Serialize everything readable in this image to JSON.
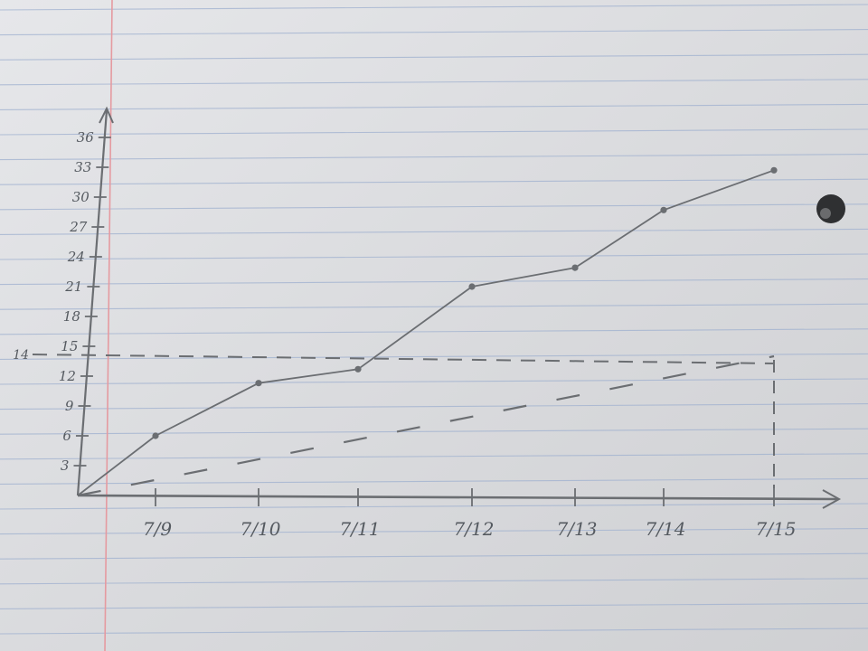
{
  "chart_data": {
    "type": "line",
    "title": "",
    "xlabel": "",
    "ylabel": "",
    "categories": [
      "7/9",
      "7/10",
      "7/11",
      "7/12",
      "7/13",
      "7/14",
      "7/15"
    ],
    "x_range": [
      "7/8",
      "7/15"
    ],
    "y_ticks": [
      3,
      6,
      9,
      12,
      15,
      18,
      21,
      24,
      27,
      30,
      33,
      36
    ],
    "ylim": [
      0,
      36
    ],
    "grid": false,
    "legend": "none",
    "series": [
      {
        "style": "solid",
        "points": [
          {
            "x": "7/8",
            "y": 0
          },
          {
            "x": "7/9",
            "y": 6
          },
          {
            "x": "7/10",
            "y": 11.3
          },
          {
            "x": "7/11",
            "y": 12.7
          },
          {
            "x": "7/12",
            "y": 21
          },
          {
            "x": "7/13",
            "y": 22.9
          },
          {
            "x": "7/14",
            "y": 28.7
          },
          {
            "x": "7/15",
            "y": 32.7
          }
        ]
      },
      {
        "style": "dashed",
        "points": [
          {
            "x": "7/8",
            "y": 0
          },
          {
            "x": "7/15",
            "y": 14
          }
        ]
      }
    ],
    "reference_lines": [
      {
        "axis": "y",
        "value": 14,
        "label": "14",
        "style": "dashed"
      },
      {
        "axis": "x",
        "value": "7/15",
        "style": "dashed"
      }
    ],
    "colors": {
      "pencil": "#6b6e72",
      "paper": "#dcdde0",
      "ruled_line": "#9fb0cf",
      "margin_line": "#e59aa0"
    }
  }
}
